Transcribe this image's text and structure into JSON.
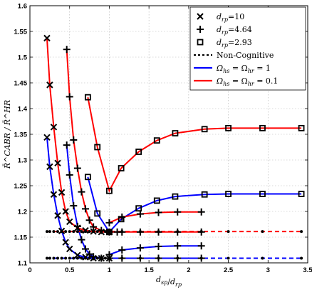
{
  "chart_data": {
    "type": "line",
    "xlabel": "d_sp/d_rp",
    "ylabel": "R̄^CABR / R̄^HR",
    "xlim": [
      0,
      3.5
    ],
    "ylim": [
      1.1,
      1.6
    ],
    "xticks": [
      0,
      0.5,
      1,
      1.5,
      2,
      2.5,
      3,
      3.5
    ],
    "xtick_labels": [
      "0",
      "0.5",
      "1",
      "1.5",
      "2",
      "2.5",
      "3",
      "3.5"
    ],
    "yticks": [
      1.1,
      1.15,
      1.2,
      1.25,
      1.3,
      1.35,
      1.4,
      1.45,
      1.5,
      1.55,
      1.6
    ],
    "ytick_labels": [
      "1.1",
      "1.15",
      "1.2",
      "1.25",
      "1.3",
      "1.35",
      "1.4",
      "1.45",
      "1.5",
      "1.55",
      "1.6"
    ],
    "grid": true,
    "legend_position": "top-right",
    "legend": [
      {
        "kind": "marker",
        "marker": "x",
        "text_base": "d",
        "text_sub": "rp",
        "text_rest": "=10"
      },
      {
        "kind": "marker",
        "marker": "plus",
        "text_base": "d",
        "text_sub": "rp",
        "text_rest": "=4.64"
      },
      {
        "kind": "marker",
        "marker": "square",
        "text_base": "d",
        "text_sub": "rp",
        "text_rest": "=2.93"
      },
      {
        "kind": "line",
        "color": "#000000",
        "style": "dotted",
        "text": "Non-Cognitive"
      },
      {
        "kind": "line",
        "color": "#0000ff",
        "style": "solid",
        "text_base": "Ω",
        "text_sub": "hs",
        "text_mid": " = Ω",
        "text_sub2": "hr",
        "text_rest": " = 1"
      },
      {
        "kind": "line",
        "color": "#ff0000",
        "style": "solid",
        "text_base": "Ω",
        "text_sub": "hs",
        "text_mid": " = Ω",
        "text_sub2": "hr",
        "text_rest": " = 0.1"
      }
    ],
    "colors": {
      "blue": "#0000ff",
      "red": "#ff0000",
      "black": "#000000"
    },
    "series": [
      {
        "color": "#ff0000",
        "style": "solid",
        "marker": "x",
        "x": [
          0.215,
          0.25,
          0.3,
          0.35,
          0.4,
          0.45,
          0.5,
          0.6,
          0.7,
          0.8,
          0.9,
          1.0
        ],
        "y": [
          1.537,
          1.446,
          1.364,
          1.294,
          1.237,
          1.2,
          1.18,
          1.168,
          1.163,
          1.161,
          1.16,
          1.16
        ]
      },
      {
        "color": "#0000ff",
        "style": "solid",
        "marker": "x",
        "x": [
          0.215,
          0.25,
          0.3,
          0.35,
          0.4,
          0.45,
          0.5,
          0.6,
          0.7,
          0.8,
          0.9,
          1.0
        ],
        "y": [
          1.344,
          1.287,
          1.233,
          1.192,
          1.162,
          1.14,
          1.127,
          1.115,
          1.111,
          1.109,
          1.109,
          1.109
        ]
      },
      {
        "color": "#ff0000",
        "style": "solid",
        "marker": "plus",
        "x": [
          0.464,
          0.5,
          0.55,
          0.6,
          0.65,
          0.7,
          0.75,
          0.8,
          0.9,
          1.0,
          1.1,
          1.16,
          1.39,
          1.62,
          1.86,
          2.16
        ],
        "y": [
          1.515,
          1.423,
          1.339,
          1.284,
          1.238,
          1.205,
          1.183,
          1.17,
          1.163,
          1.16,
          1.16,
          1.16,
          1.16,
          1.16,
          1.16,
          1.16
        ]
      },
      {
        "color": "#0000ff",
        "style": "solid",
        "marker": "plus",
        "x": [
          0.464,
          0.5,
          0.55,
          0.6,
          0.65,
          0.7,
          0.75,
          0.8,
          0.9,
          1.0,
          1.16,
          1.39,
          1.62,
          1.86,
          2.16
        ],
        "y": [
          1.329,
          1.271,
          1.211,
          1.171,
          1.145,
          1.127,
          1.117,
          1.112,
          1.109,
          1.109,
          1.109,
          1.109,
          1.109,
          1.109,
          1.109
        ]
      },
      {
        "color": "#ff0000",
        "style": "solid",
        "marker": "square",
        "x": [
          0.73,
          0.85,
          1.0,
          1.15,
          1.37,
          1.6,
          1.83,
          2.2,
          2.5,
          2.93,
          3.42
        ],
        "y": [
          1.422,
          1.325,
          1.24,
          1.284,
          1.316,
          1.338,
          1.352,
          1.36,
          1.362,
          1.362,
          1.362
        ]
      },
      {
        "color": "#0000ff",
        "style": "solid",
        "marker": "square",
        "x": [
          0.73,
          0.85,
          1.0,
          1.15,
          1.37,
          1.6,
          1.83,
          2.2,
          2.5,
          2.93,
          3.42
        ],
        "y": [
          1.267,
          1.196,
          1.16,
          1.185,
          1.206,
          1.221,
          1.229,
          1.233,
          1.234,
          1.234,
          1.234
        ]
      },
      {
        "color": "#ff0000",
        "style": "dashed",
        "marker": "dot",
        "x": [
          0.215,
          0.25,
          0.3,
          0.35,
          0.4,
          0.45,
          0.5,
          0.55,
          0.6,
          0.65,
          0.7,
          0.75,
          0.8,
          0.85,
          0.9,
          0.95,
          1.0,
          1.16,
          1.39,
          1.62,
          1.86,
          2.16,
          2.5,
          2.93,
          3.42
        ],
        "y": [
          1.161,
          1.161,
          1.161,
          1.161,
          1.161,
          1.161,
          1.161,
          1.161,
          1.161,
          1.161,
          1.161,
          1.161,
          1.161,
          1.161,
          1.161,
          1.161,
          1.161,
          1.161,
          1.161,
          1.161,
          1.161,
          1.161,
          1.161,
          1.161,
          1.161
        ]
      },
      {
        "color": "#0000ff",
        "style": "dashed",
        "marker": "dot",
        "x": [
          0.215,
          0.25,
          0.3,
          0.35,
          0.4,
          0.45,
          0.5,
          0.55,
          0.6,
          0.65,
          0.7,
          0.75,
          0.8,
          0.85,
          0.9,
          0.95,
          1.0,
          1.16,
          1.39,
          1.62,
          1.86,
          2.16,
          2.5,
          2.93,
          3.42
        ],
        "y": [
          1.109,
          1.109,
          1.109,
          1.109,
          1.109,
          1.109,
          1.109,
          1.109,
          1.109,
          1.109,
          1.109,
          1.109,
          1.109,
          1.109,
          1.109,
          1.109,
          1.109,
          1.109,
          1.109,
          1.109,
          1.109,
          1.109,
          1.109,
          1.109,
          1.109
        ]
      },
      {
        "color": "#ff0000",
        "style": "solid",
        "marker": "plus",
        "x": [
          1.0,
          1.16,
          1.39,
          1.62,
          1.86,
          2.16
        ],
        "y": [
          1.178,
          1.189,
          1.195,
          1.198,
          1.199,
          1.199
        ]
      },
      {
        "color": "#0000ff",
        "style": "solid",
        "marker": "plus",
        "x": [
          1.0,
          1.16,
          1.39,
          1.62,
          1.86,
          2.16
        ],
        "y": [
          1.116,
          1.125,
          1.129,
          1.132,
          1.133,
          1.133
        ]
      }
    ]
  }
}
